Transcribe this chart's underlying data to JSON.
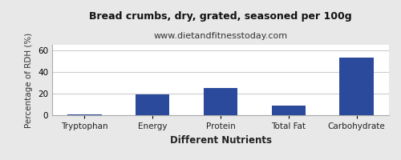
{
  "title": "Bread crumbs, dry, grated, seasoned per 100g",
  "subtitle": "www.dietandfitnesstoday.com",
  "categories": [
    "Tryptophan",
    "Energy",
    "Protein",
    "Total Fat",
    "Carbohydrate"
  ],
  "values": [
    0.4,
    19,
    25,
    9,
    53
  ],
  "bar_color": "#2b4a9b",
  "xlabel": "Different Nutrients",
  "ylabel": "Percentage of RDH (%)",
  "ylim": [
    0,
    65
  ],
  "yticks": [
    0,
    20,
    40,
    60
  ],
  "title_fontsize": 9,
  "subtitle_fontsize": 8,
  "xlabel_fontsize": 8.5,
  "ylabel_fontsize": 7.5,
  "tick_fontsize": 7.5,
  "background_color": "#e8e8e8",
  "plot_background": "#ffffff",
  "grid_color": "#cccccc"
}
